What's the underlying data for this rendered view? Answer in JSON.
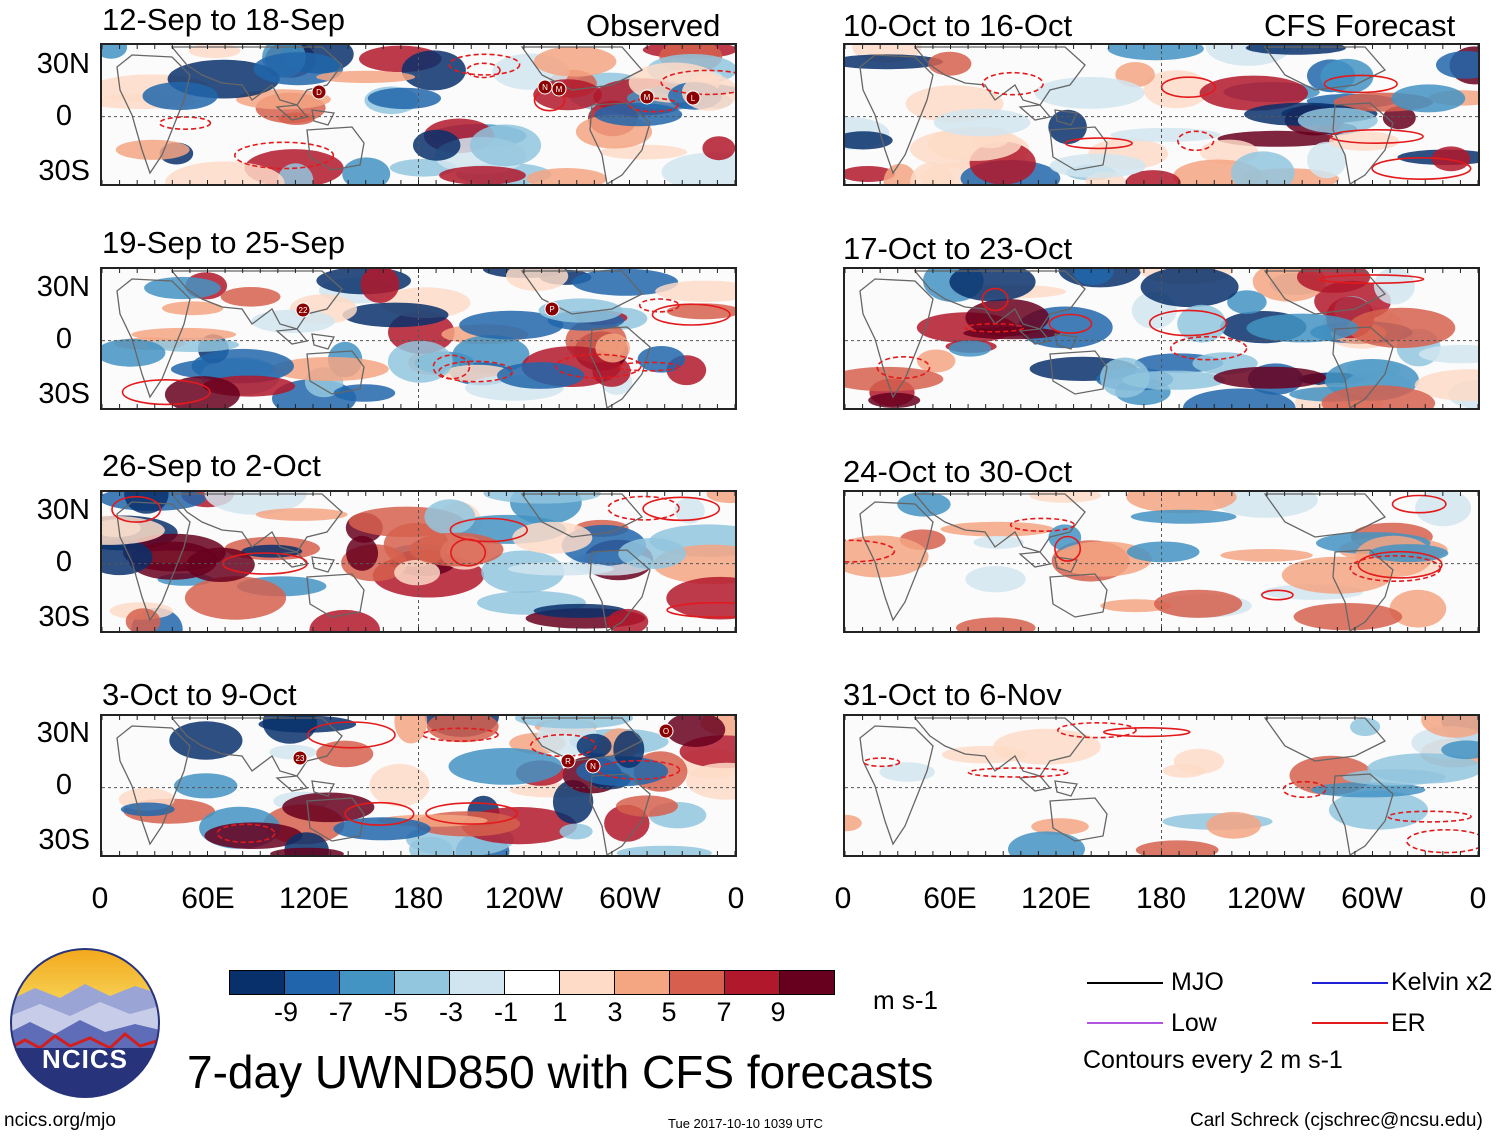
{
  "panels": {
    "left": [
      {
        "title": "12-Sep to 18-Sep",
        "corner": "Observed"
      },
      {
        "title": "19-Sep to 25-Sep",
        "corner": ""
      },
      {
        "title": "26-Sep to 2-Oct",
        "corner": ""
      },
      {
        "title": "3-Oct to 9-Oct",
        "corner": ""
      }
    ],
    "right": [
      {
        "title": "10-Oct to 16-Oct",
        "corner": "CFS Forecast"
      },
      {
        "title": "17-Oct to 23-Oct",
        "corner": ""
      },
      {
        "title": "24-Oct to 30-Oct",
        "corner": ""
      },
      {
        "title": "31-Oct to 6-Nov",
        "corner": ""
      }
    ]
  },
  "lat_labels": [
    "30N",
    "0",
    "30S"
  ],
  "lon_labels": [
    "0",
    "60E",
    "120E",
    "180",
    "120W",
    "60W",
    "0"
  ],
  "colorbar": {
    "ticks": [
      "-9",
      "-7",
      "-5",
      "-3",
      "-1",
      "1",
      "3",
      "5",
      "7",
      "9"
    ],
    "units": "m s-1",
    "colors": [
      "#08306b",
      "#2166ac",
      "#4393c3",
      "#92c5de",
      "#d1e5f0",
      "#ffffff",
      "#fddbc7",
      "#f4a582",
      "#d6604d",
      "#b2182b",
      "#67001f"
    ]
  },
  "legend": {
    "mjo": "MJO",
    "kelvin": "Kelvin x2",
    "low": "Low",
    "er": "ER",
    "contours": "Contours every 2 m s-1",
    "colors": {
      "mjo": "#000000",
      "kelvin": "#1f1fd6",
      "low": "#b154e0",
      "er": "#e31a1c"
    }
  },
  "logo": {
    "text": "NCICS"
  },
  "main_title": "7-day UWND850 with CFS forecasts",
  "footer": {
    "left": "ncics.org/mjo",
    "center": "Tue 2017-10-10 1039 UTC",
    "right": "Carl Schreck (cjschrec@ncsu.edu)"
  },
  "storm_labels": [
    "D",
    "N",
    "M",
    "M",
    "L",
    "22",
    "P",
    "23",
    "R",
    "N",
    "O"
  ]
}
